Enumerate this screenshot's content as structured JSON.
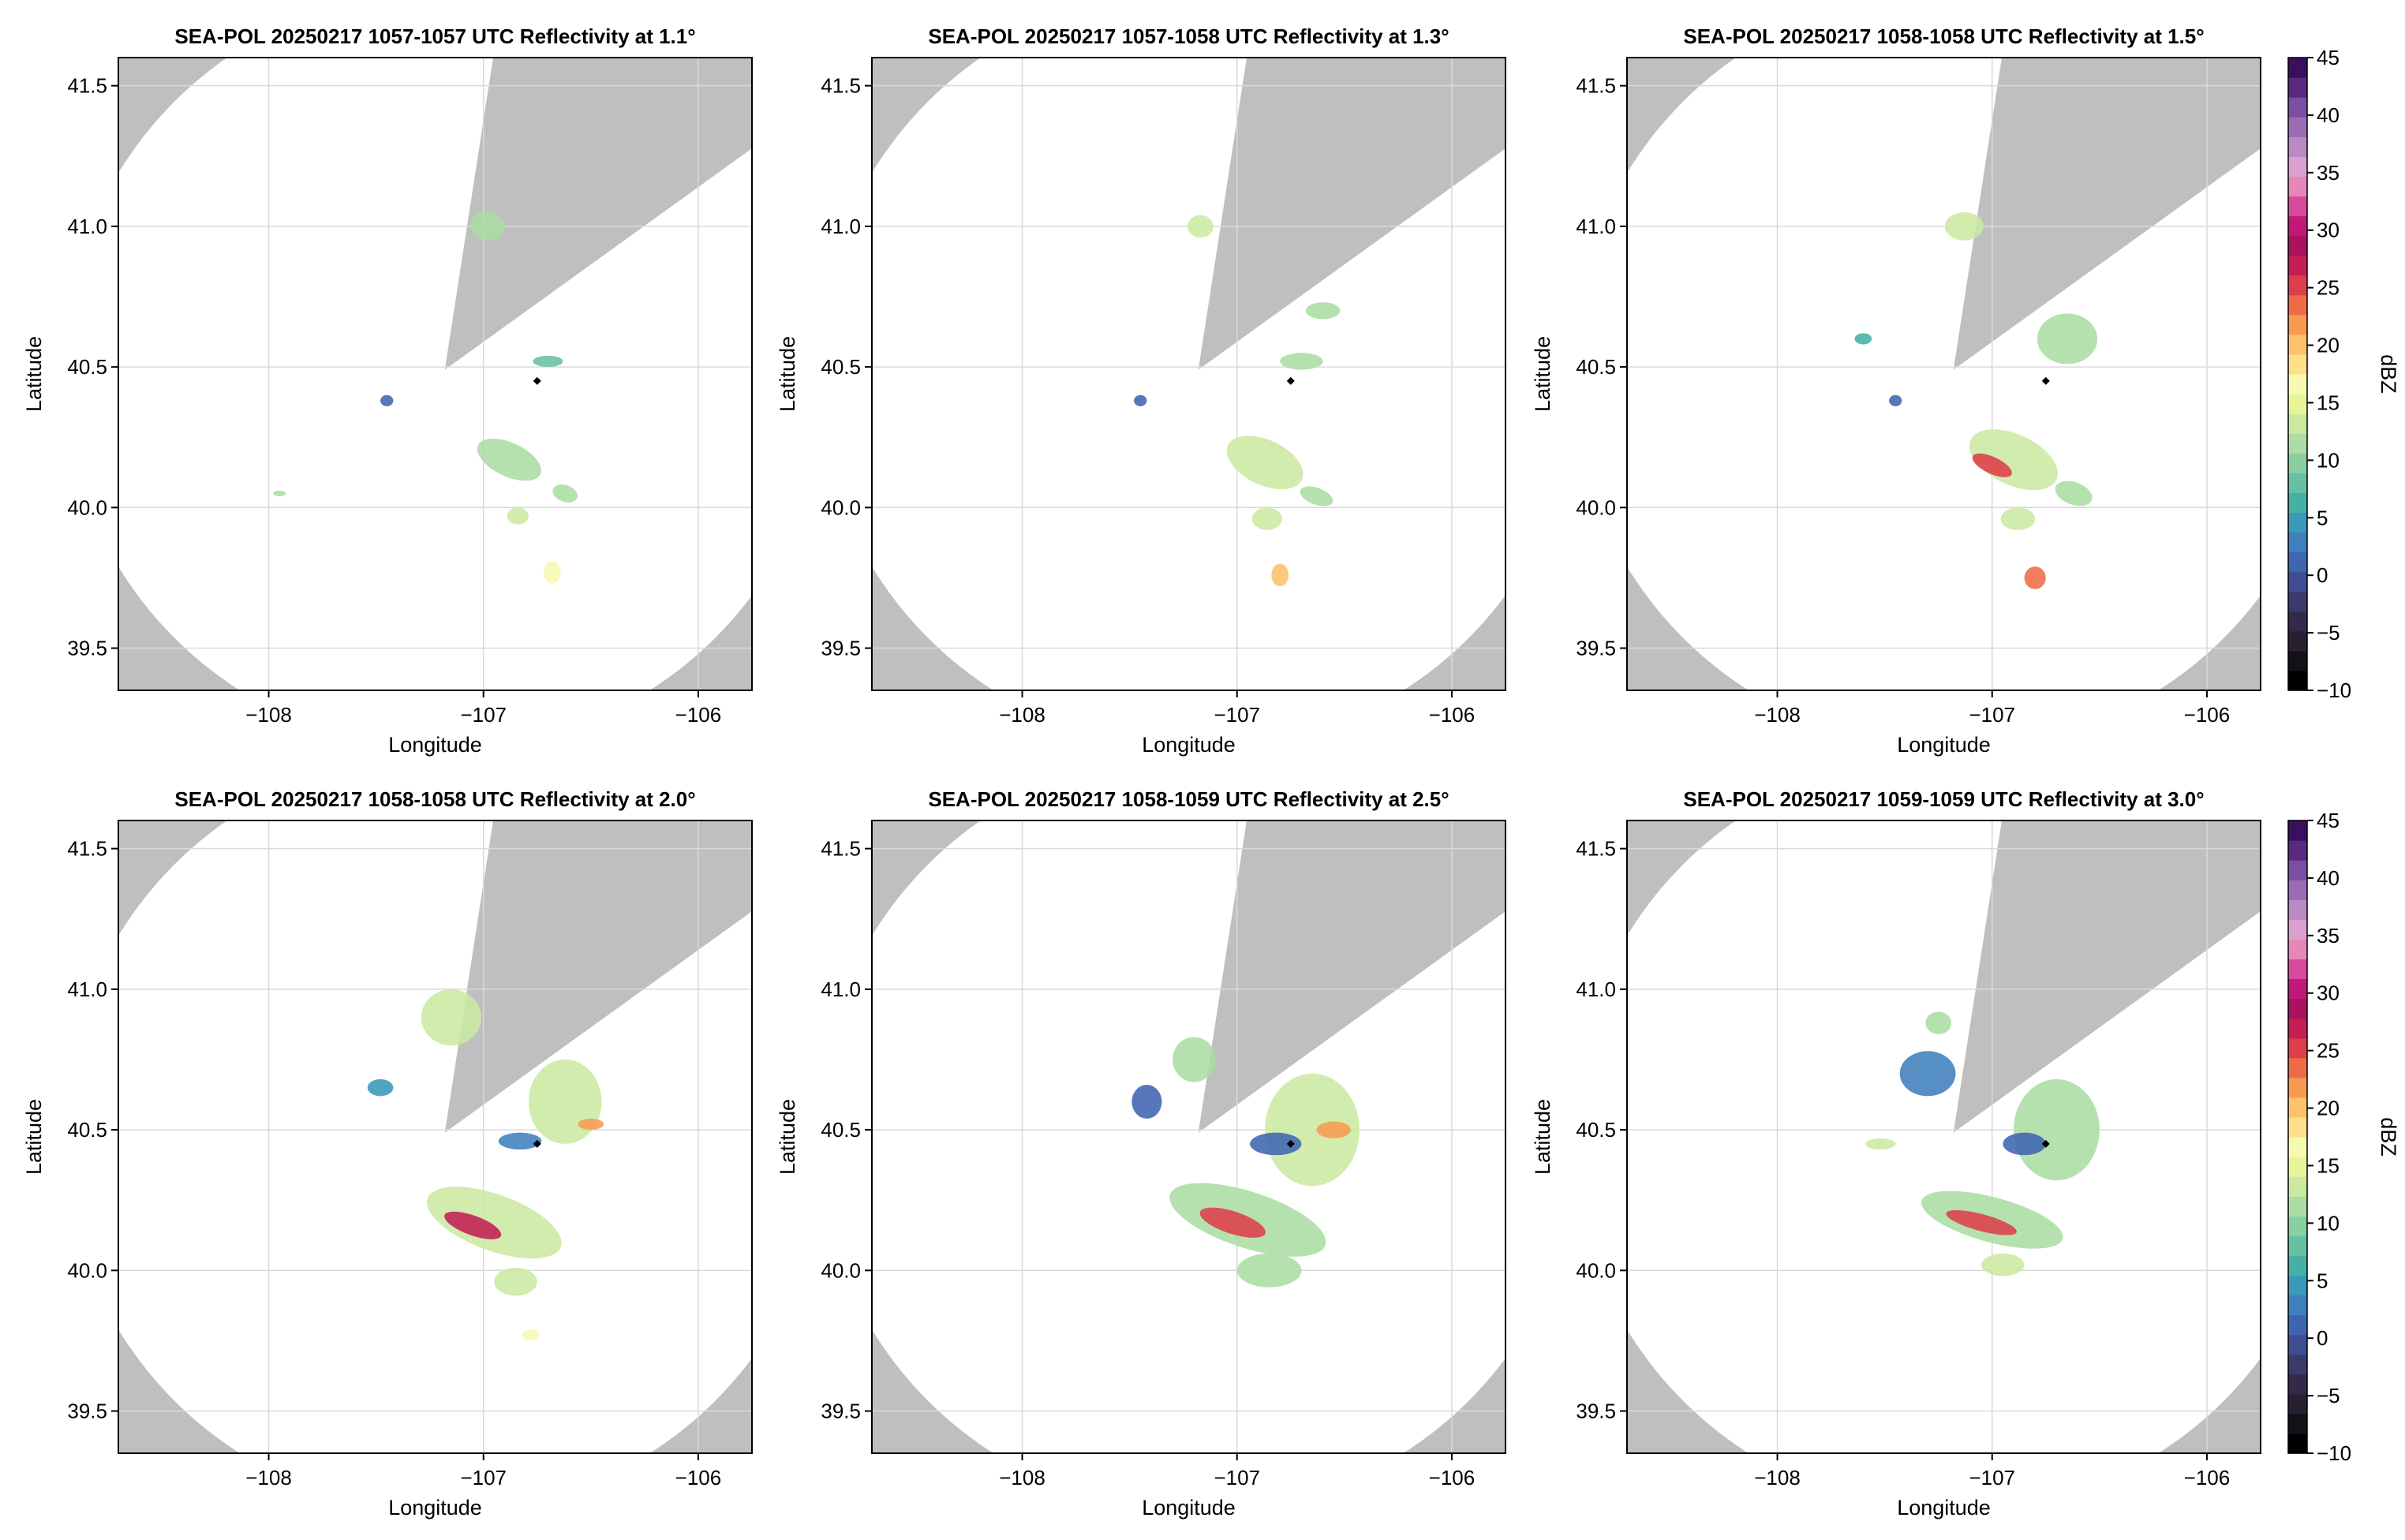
{
  "figure": {
    "rows": 2,
    "cols": 3
  },
  "colors": {
    "outside_range": "#bfbfbf",
    "coverage": "#ffffff",
    "grid": "#d9d9d9",
    "marker": "#000000"
  },
  "colorbar": {
    "label": "dBZ",
    "ticks": [
      45,
      40,
      35,
      30,
      25,
      20,
      15,
      10,
      5,
      0,
      -5,
      -10
    ],
    "tick_labels": [
      "45",
      "40",
      "35",
      "30",
      "25",
      "20",
      "15",
      "10",
      "5",
      "0",
      "−5",
      "−10"
    ],
    "range": [
      -10,
      45
    ],
    "colors": [
      "#000000",
      "#141018",
      "#262030",
      "#332a4a",
      "#3b3a6c",
      "#3f4d92",
      "#3f65b0",
      "#3f7fbc",
      "#3a98b8",
      "#47b0a5",
      "#66c0a4",
      "#89cfa4",
      "#abdda4",
      "#cbe9a0",
      "#e6f598",
      "#f7f9b0",
      "#fee08b",
      "#fdc26b",
      "#f89b52",
      "#ef6b48",
      "#dd3e4a",
      "#c41e54",
      "#a8125e",
      "#c2187a",
      "#d94a9c",
      "#e786b8",
      "#d9a0cf",
      "#b98ac4",
      "#9a6cb4",
      "#7a4ea0",
      "#5a2a80",
      "#3a0f60"
    ]
  },
  "chart_data": [
    {
      "type": "heatmap",
      "title": "SEA-POL 20250217 1057-1057 UTC Reflectivity at 1.1°",
      "xlabel": "Longitude",
      "ylabel": "Latitude",
      "xlim": [
        -108.7,
        -105.75
      ],
      "ylim": [
        39.35,
        41.6
      ],
      "xticks": [
        -108,
        -107,
        -106
      ],
      "xtick_labels": [
        "−108",
        "−107",
        "−106"
      ],
      "yticks": [
        39.5,
        40.0,
        40.5,
        41.0,
        41.5
      ],
      "ytick_labels": [
        "39.5",
        "40.0",
        "40.5",
        "41.0",
        "41.5"
      ],
      "radar_center": [
        -107.18,
        40.49
      ],
      "radar_radius_km": 150,
      "blocked_sector": [
        [
          -106.97,
          41.53
        ],
        [
          -106.04,
          41.12
        ]
      ],
      "marker": [
        -106.75,
        40.45
      ],
      "cells": [
        {
          "lon": -106.88,
          "lat": 40.17,
          "rx": 0.16,
          "ry": 0.06,
          "rot": 25,
          "dbz": 11
        },
        {
          "lon": -106.62,
          "lat": 40.05,
          "rx": 0.06,
          "ry": 0.03,
          "rot": 20,
          "dbz": 12
        },
        {
          "lon": -106.84,
          "lat": 39.97,
          "rx": 0.05,
          "ry": 0.03,
          "rot": 0,
          "dbz": 13
        },
        {
          "lon": -106.68,
          "lat": 39.77,
          "rx": 0.04,
          "ry": 0.04,
          "rot": 0,
          "dbz": 16
        },
        {
          "lon": -106.98,
          "lat": 41.0,
          "rx": 0.08,
          "ry": 0.05,
          "rot": 10,
          "dbz": 12
        },
        {
          "lon": -106.7,
          "lat": 40.52,
          "rx": 0.07,
          "ry": 0.02,
          "rot": 0,
          "dbz": 8
        },
        {
          "lon": -107.45,
          "lat": 40.38,
          "rx": 0.03,
          "ry": 0.02,
          "rot": 0,
          "dbz": 2
        },
        {
          "lon": -107.95,
          "lat": 40.05,
          "rx": 0.03,
          "ry": 0.01,
          "rot": 0,
          "dbz": 12
        }
      ]
    },
    {
      "type": "heatmap",
      "title": "SEA-POL 20250217 1057-1058 UTC Reflectivity at 1.3°",
      "xlabel": "Longitude",
      "ylabel": "Latitude",
      "xlim": [
        -108.7,
        -105.75
      ],
      "ylim": [
        39.35,
        41.6
      ],
      "xticks": [
        -108,
        -107,
        -106
      ],
      "xtick_labels": [
        "−108",
        "−107",
        "−106"
      ],
      "yticks": [
        39.5,
        40.0,
        40.5,
        41.0,
        41.5
      ],
      "ytick_labels": [
        "39.5",
        "40.0",
        "40.5",
        "41.0",
        "41.5"
      ],
      "radar_center": [
        -107.18,
        40.49
      ],
      "radar_radius_km": 150,
      "blocked_sector": [
        [
          -106.97,
          41.53
        ],
        [
          -106.04,
          41.12
        ]
      ],
      "marker": [
        -106.75,
        40.45
      ],
      "cells": [
        {
          "lon": -106.87,
          "lat": 40.16,
          "rx": 0.19,
          "ry": 0.08,
          "rot": 25,
          "dbz": 13
        },
        {
          "lon": -106.63,
          "lat": 40.04,
          "rx": 0.08,
          "ry": 0.03,
          "rot": 20,
          "dbz": 12
        },
        {
          "lon": -106.86,
          "lat": 39.96,
          "rx": 0.07,
          "ry": 0.04,
          "rot": 0,
          "dbz": 13
        },
        {
          "lon": -106.8,
          "lat": 39.76,
          "rx": 0.04,
          "ry": 0.04,
          "rot": 0,
          "dbz": 20
        },
        {
          "lon": -107.17,
          "lat": 41.0,
          "rx": 0.06,
          "ry": 0.04,
          "rot": 0,
          "dbz": 14
        },
        {
          "lon": -106.7,
          "lat": 40.52,
          "rx": 0.1,
          "ry": 0.03,
          "rot": 0,
          "dbz": 12
        },
        {
          "lon": -106.6,
          "lat": 40.7,
          "rx": 0.08,
          "ry": 0.03,
          "rot": 0,
          "dbz": 11
        },
        {
          "lon": -107.45,
          "lat": 40.38,
          "rx": 0.03,
          "ry": 0.02,
          "rot": 0,
          "dbz": 2
        }
      ]
    },
    {
      "type": "heatmap",
      "title": "SEA-POL 20250217 1058-1058 UTC Reflectivity at 1.5°",
      "xlabel": "Longitude",
      "ylabel": "Latitude",
      "xlim": [
        -108.7,
        -105.75
      ],
      "ylim": [
        39.35,
        41.6
      ],
      "xticks": [
        -108,
        -107,
        -106
      ],
      "xtick_labels": [
        "−108",
        "−107",
        "−106"
      ],
      "yticks": [
        39.5,
        40.0,
        40.5,
        41.0,
        41.5
      ],
      "ytick_labels": [
        "39.5",
        "40.0",
        "40.5",
        "41.0",
        "41.5"
      ],
      "radar_center": [
        -107.18,
        40.49
      ],
      "radar_radius_km": 150,
      "blocked_sector": [
        [
          -106.97,
          41.53
        ],
        [
          -106.04,
          41.12
        ]
      ],
      "marker": [
        -106.75,
        40.45
      ],
      "cells": [
        {
          "lon": -106.9,
          "lat": 40.17,
          "rx": 0.22,
          "ry": 0.09,
          "rot": 25,
          "dbz": 14
        },
        {
          "lon": -107.0,
          "lat": 40.15,
          "rx": 0.1,
          "ry": 0.03,
          "rot": 25,
          "dbz": 25
        },
        {
          "lon": -106.62,
          "lat": 40.05,
          "rx": 0.09,
          "ry": 0.04,
          "rot": 20,
          "dbz": 12
        },
        {
          "lon": -106.88,
          "lat": 39.96,
          "rx": 0.08,
          "ry": 0.04,
          "rot": 0,
          "dbz": 14
        },
        {
          "lon": -106.8,
          "lat": 39.75,
          "rx": 0.05,
          "ry": 0.04,
          "rot": 0,
          "dbz": 24
        },
        {
          "lon": -107.13,
          "lat": 41.0,
          "rx": 0.09,
          "ry": 0.05,
          "rot": 0,
          "dbz": 14
        },
        {
          "lon": -106.65,
          "lat": 40.6,
          "rx": 0.14,
          "ry": 0.09,
          "rot": 0,
          "dbz": 12
        },
        {
          "lon": -107.45,
          "lat": 40.38,
          "rx": 0.03,
          "ry": 0.02,
          "rot": 0,
          "dbz": 2
        },
        {
          "lon": -107.6,
          "lat": 40.6,
          "rx": 0.04,
          "ry": 0.02,
          "rot": 0,
          "dbz": 7
        }
      ]
    },
    {
      "type": "heatmap",
      "title": "SEA-POL 20250217 1058-1058 UTC Reflectivity at 2.0°",
      "xlabel": "Longitude",
      "ylabel": "Latitude",
      "xlim": [
        -108.7,
        -105.75
      ],
      "ylim": [
        39.35,
        41.6
      ],
      "xticks": [
        -108,
        -107,
        -106
      ],
      "xtick_labels": [
        "−108",
        "−107",
        "−106"
      ],
      "yticks": [
        39.5,
        40.0,
        40.5,
        41.0,
        41.5
      ],
      "ytick_labels": [
        "39.5",
        "40.0",
        "40.5",
        "41.0",
        "41.5"
      ],
      "radar_center": [
        -107.18,
        40.49
      ],
      "radar_radius_km": 150,
      "blocked_sector": [
        [
          -106.97,
          41.53
        ],
        [
          -106.04,
          41.12
        ]
      ],
      "marker": [
        -106.75,
        40.45
      ],
      "cells": [
        {
          "lon": -106.95,
          "lat": 40.17,
          "rx": 0.33,
          "ry": 0.1,
          "rot": 20,
          "dbz": 13
        },
        {
          "lon": -107.05,
          "lat": 40.16,
          "rx": 0.14,
          "ry": 0.035,
          "rot": 20,
          "dbz": 27
        },
        {
          "lon": -106.62,
          "lat": 40.6,
          "rx": 0.17,
          "ry": 0.15,
          "rot": 0,
          "dbz": 14
        },
        {
          "lon": -106.5,
          "lat": 40.52,
          "rx": 0.06,
          "ry": 0.02,
          "rot": 0,
          "dbz": 22
        },
        {
          "lon": -107.15,
          "lat": 40.9,
          "rx": 0.14,
          "ry": 0.1,
          "rot": 0,
          "dbz": 13
        },
        {
          "lon": -106.85,
          "lat": 39.96,
          "rx": 0.1,
          "ry": 0.05,
          "rot": 0,
          "dbz": 14
        },
        {
          "lon": -107.48,
          "lat": 40.65,
          "rx": 0.06,
          "ry": 0.03,
          "rot": 0,
          "dbz": 4
        },
        {
          "lon": -106.78,
          "lat": 39.77,
          "rx": 0.04,
          "ry": 0.02,
          "rot": 0,
          "dbz": 16
        },
        {
          "lon": -106.83,
          "lat": 40.46,
          "rx": 0.1,
          "ry": 0.03,
          "rot": 0,
          "dbz": 3
        }
      ]
    },
    {
      "type": "heatmap",
      "title": "SEA-POL 20250217 1058-1059 UTC Reflectivity at 2.5°",
      "xlabel": "Longitude",
      "ylabel": "Latitude",
      "xlim": [
        -108.7,
        -105.75
      ],
      "ylim": [
        39.35,
        41.6
      ],
      "xticks": [
        -108,
        -107,
        -106
      ],
      "xtick_labels": [
        "−108",
        "−107",
        "−106"
      ],
      "yticks": [
        39.5,
        40.0,
        40.5,
        41.0,
        41.5
      ],
      "ytick_labels": [
        "39.5",
        "40.0",
        "40.5",
        "41.0",
        "41.5"
      ],
      "radar_center": [
        -107.18,
        40.49
      ],
      "radar_radius_km": 150,
      "blocked_sector": [
        [
          -106.97,
          41.53
        ],
        [
          -106.04,
          41.12
        ]
      ],
      "marker": [
        -106.75,
        40.45
      ],
      "cells": [
        {
          "lon": -106.95,
          "lat": 40.18,
          "rx": 0.38,
          "ry": 0.1,
          "rot": 18,
          "dbz": 12
        },
        {
          "lon": -107.02,
          "lat": 40.17,
          "rx": 0.16,
          "ry": 0.04,
          "rot": 18,
          "dbz": 26
        },
        {
          "lon": -106.65,
          "lat": 40.5,
          "rx": 0.22,
          "ry": 0.2,
          "rot": 0,
          "dbz": 14
        },
        {
          "lon": -106.55,
          "lat": 40.5,
          "rx": 0.08,
          "ry": 0.03,
          "rot": 0,
          "dbz": 21
        },
        {
          "lon": -107.2,
          "lat": 40.75,
          "rx": 0.1,
          "ry": 0.08,
          "rot": 0,
          "dbz": 11
        },
        {
          "lon": -107.42,
          "lat": 40.6,
          "rx": 0.07,
          "ry": 0.06,
          "rot": 0,
          "dbz": 2
        },
        {
          "lon": -106.85,
          "lat": 40.0,
          "rx": 0.15,
          "ry": 0.06,
          "rot": 0,
          "dbz": 12
        },
        {
          "lon": -106.82,
          "lat": 40.45,
          "rx": 0.12,
          "ry": 0.04,
          "rot": 0,
          "dbz": 2
        }
      ]
    },
    {
      "type": "heatmap",
      "title": "SEA-POL 20250217 1059-1059 UTC Reflectivity at 3.0°",
      "xlabel": "Longitude",
      "ylabel": "Latitude",
      "xlim": [
        -108.7,
        -105.75
      ],
      "ylim": [
        39.35,
        41.6
      ],
      "xticks": [
        -108,
        -107,
        -106
      ],
      "xtick_labels": [
        "−108",
        "−107",
        "−106"
      ],
      "yticks": [
        39.5,
        40.0,
        40.5,
        41.0,
        41.5
      ],
      "ytick_labels": [
        "39.5",
        "40.0",
        "40.5",
        "41.0",
        "41.5"
      ],
      "radar_center": [
        -107.18,
        40.49
      ],
      "radar_radius_km": 150,
      "blocked_sector": [
        [
          -106.97,
          41.53
        ],
        [
          -106.04,
          41.12
        ]
      ],
      "marker": [
        -106.75,
        40.45
      ],
      "cells": [
        {
          "lon": -107.0,
          "lat": 40.18,
          "rx": 0.34,
          "ry": 0.08,
          "rot": 15,
          "dbz": 12
        },
        {
          "lon": -107.05,
          "lat": 40.17,
          "rx": 0.17,
          "ry": 0.03,
          "rot": 15,
          "dbz": 26
        },
        {
          "lon": -106.7,
          "lat": 40.5,
          "rx": 0.2,
          "ry": 0.18,
          "rot": 0,
          "dbz": 12
        },
        {
          "lon": -107.3,
          "lat": 40.7,
          "rx": 0.13,
          "ry": 0.08,
          "rot": 0,
          "dbz": 3
        },
        {
          "lon": -107.25,
          "lat": 40.88,
          "rx": 0.06,
          "ry": 0.04,
          "rot": 0,
          "dbz": 11
        },
        {
          "lon": -106.95,
          "lat": 40.02,
          "rx": 0.1,
          "ry": 0.04,
          "rot": 0,
          "dbz": 13
        },
        {
          "lon": -107.52,
          "lat": 40.45,
          "rx": 0.07,
          "ry": 0.02,
          "rot": 0,
          "dbz": 13
        },
        {
          "lon": -106.85,
          "lat": 40.45,
          "rx": 0.1,
          "ry": 0.04,
          "rot": 0,
          "dbz": 2
        }
      ]
    }
  ]
}
